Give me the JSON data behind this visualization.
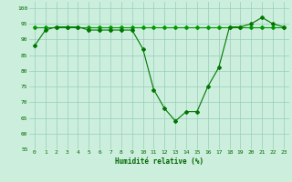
{
  "series_main": [
    88,
    93,
    94,
    94,
    94,
    93,
    93,
    93,
    93,
    93,
    87,
    74,
    68,
    64,
    67,
    67,
    75,
    81,
    94,
    94,
    95,
    97,
    95,
    94
  ],
  "series_flat": [
    94,
    94,
    94,
    94,
    94,
    94,
    94,
    94,
    94,
    94,
    94,
    94,
    94,
    94,
    94,
    94,
    94,
    94,
    94,
    94,
    94,
    94,
    94,
    94
  ],
  "x": [
    0,
    1,
    2,
    3,
    4,
    5,
    6,
    7,
    8,
    9,
    10,
    11,
    12,
    13,
    14,
    15,
    16,
    17,
    18,
    19,
    20,
    21,
    22,
    23
  ],
  "line_color_main": "#007700",
  "line_color_flat": "#009900",
  "xlabel": "Humidité relative (%)",
  "ylim": [
    55,
    102
  ],
  "yticks": [
    55,
    60,
    65,
    70,
    75,
    80,
    85,
    90,
    95,
    100
  ],
  "bg_color": "#cceedd",
  "grid_color": "#99ccbb",
  "xlabel_color": "#006600",
  "tick_color": "#006600",
  "marker": "D",
  "markersize": 2,
  "linewidth": 0.8
}
